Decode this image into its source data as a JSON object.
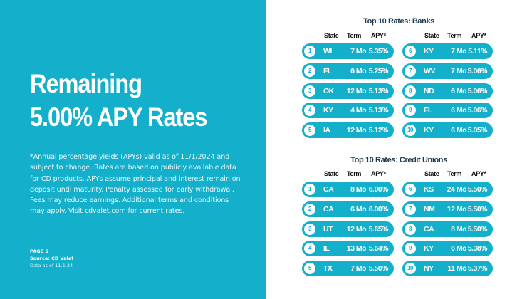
{
  "left": {
    "headline_line1": "Remaining",
    "headline_line2": "5.00% APY Rates",
    "disclaimer_text": "*Annual percentage yields (APYs) valid as of 11/1/2024 and subject to change. Rates are based on publicly available data for CD products. APYs assume principal and interest remain on deposit until maturity. Penalty assessed for early withdrawal. Fees may reduce earnings. Additional terms and conditions may apply. Visit ",
    "disclaimer_link": "cdvalet.com",
    "disclaimer_tail": " for current rates.",
    "page_label": "PAGE 5",
    "source_label": "Source: CD Valet",
    "as_of_label": "Data as of 11.1.24"
  },
  "columns": {
    "state": "State",
    "term": "Term",
    "apy": "APY*"
  },
  "colors": {
    "accent": "#14b0cb",
    "title": "#1f3b4b"
  },
  "banks": {
    "title": "Top 10 Rates: Banks",
    "rows": [
      {
        "rank": "1",
        "state": "WI",
        "term": "7 Mo",
        "apy": "5.35%"
      },
      {
        "rank": "2",
        "state": "FL",
        "term": "6 Mo",
        "apy": "5.25%"
      },
      {
        "rank": "3",
        "state": "OK",
        "term": "12 Mo",
        "apy": "5.13%"
      },
      {
        "rank": "4",
        "state": "KY",
        "term": "4 Mo",
        "apy": "5.13%"
      },
      {
        "rank": "5",
        "state": "IA",
        "term": "12 Mo",
        "apy": "5.12%"
      },
      {
        "rank": "6",
        "state": "KY",
        "term": "7 Mo",
        "apy": "5.11%"
      },
      {
        "rank": "7",
        "state": "WV",
        "term": "7 Mo",
        "apy": "5.06%"
      },
      {
        "rank": "8",
        "state": "ND",
        "term": "6 Mo",
        "apy": "5.06%"
      },
      {
        "rank": "9",
        "state": "FL",
        "term": "6 Mo",
        "apy": "5.06%"
      },
      {
        "rank": "10",
        "state": "KY",
        "term": "6 Mo",
        "apy": "5.05%"
      }
    ]
  },
  "credit_unions": {
    "title": "Top 10 Rates: Credit Unions",
    "rows": [
      {
        "rank": "1",
        "state": "CA",
        "term": "8 Mo",
        "apy": "6.00%"
      },
      {
        "rank": "2",
        "state": "CA",
        "term": "6 Mo",
        "apy": "6.00%"
      },
      {
        "rank": "3",
        "state": "UT",
        "term": "12 Mo",
        "apy": "5.65%"
      },
      {
        "rank": "4",
        "state": "IL",
        "term": "13 Mo",
        "apy": "5.64%"
      },
      {
        "rank": "5",
        "state": "TX",
        "term": "7 Mo",
        "apy": "5.50%"
      },
      {
        "rank": "6",
        "state": "KS",
        "term": "24 Mo",
        "apy": "5.50%"
      },
      {
        "rank": "7",
        "state": "NM",
        "term": "12 Mo",
        "apy": "5.50%"
      },
      {
        "rank": "8",
        "state": "CA",
        "term": "8 Mo",
        "apy": "5.50%"
      },
      {
        "rank": "9",
        "state": "KY",
        "term": "6 Mo",
        "apy": "5.38%"
      },
      {
        "rank": "10",
        "state": "NY",
        "term": "11 Mo",
        "apy": "5.37%"
      }
    ]
  }
}
